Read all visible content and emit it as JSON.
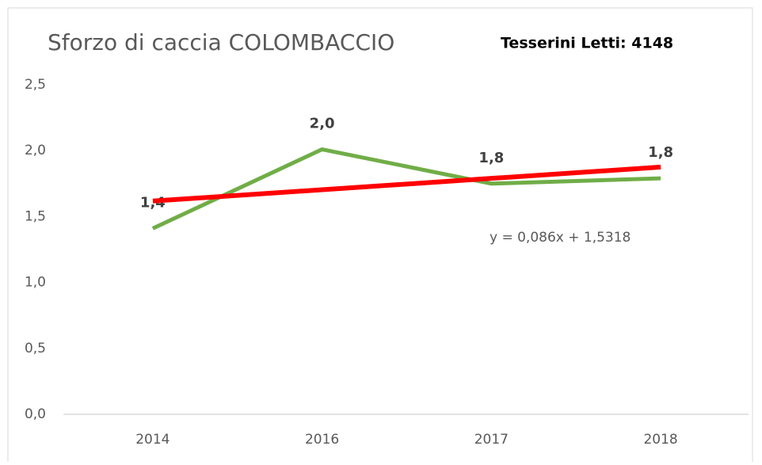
{
  "chart_data": {
    "type": "line",
    "title": "Sforzo di caccia COLOMBACCIO",
    "subtitle": "Tesserini Letti: 4148",
    "categories": [
      "2014",
      "2016",
      "2017",
      "2018"
    ],
    "series": [
      {
        "color": "#70ad47",
        "values": [
          1.41,
          2.01,
          1.75,
          1.79
        ],
        "value_labels": [
          "1,4",
          "2,0",
          "1,8",
          "1,8"
        ]
      }
    ],
    "trendline": {
      "color": "#ff0000",
      "values": [
        1.6178,
        1.7038,
        1.7898,
        1.8758
      ],
      "label": "y = 0,086x + 1,5318"
    },
    "ylim": [
      0,
      2.5
    ],
    "yticks": [
      {
        "value": 0,
        "label": "0,0"
      },
      {
        "value": 0.5,
        "label": "0,5"
      },
      {
        "value": 1,
        "label": "1,0"
      },
      {
        "value": 1.5,
        "label": "1,5"
      },
      {
        "value": 2,
        "label": "2,0"
      },
      {
        "value": 2.5,
        "label": "2,5"
      }
    ],
    "grid": false
  }
}
